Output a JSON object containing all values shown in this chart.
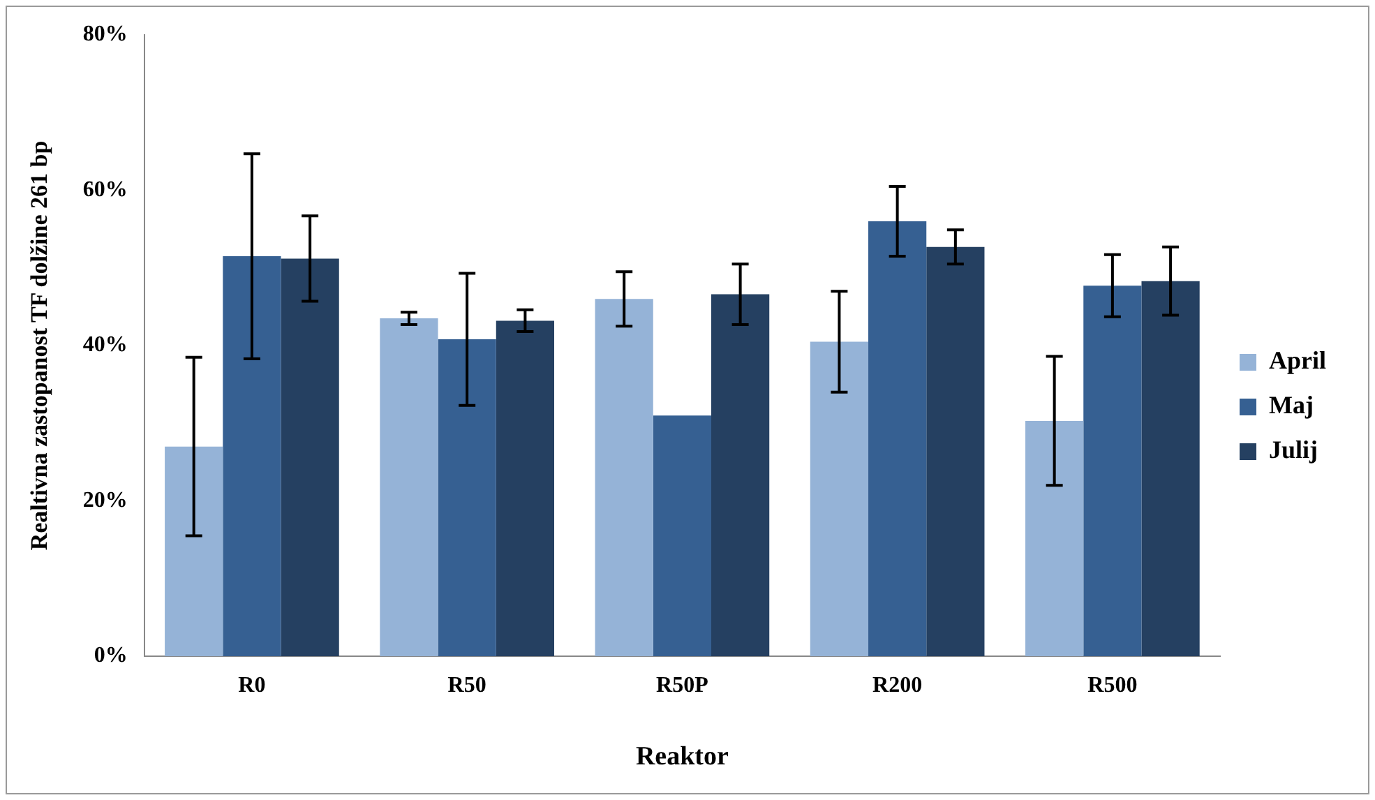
{
  "chart_data": {
    "type": "bar",
    "xlabel": "Reaktor",
    "ylabel": "Realtivna zastopanost TF dolžine 261 bp",
    "categories": [
      "R0",
      "R50",
      "R50P",
      "R200",
      "R500"
    ],
    "series": [
      {
        "name": "April",
        "color": "#95b3d7",
        "values": [
          27,
          43.5,
          46,
          40.5,
          30.3
        ],
        "errors": [
          11.5,
          0.8,
          3.5,
          6.5,
          8.3
        ]
      },
      {
        "name": "Maj",
        "color": "#366092",
        "values": [
          51.5,
          40.8,
          31,
          56,
          47.7
        ],
        "errors": [
          13.2,
          8.5,
          null,
          4.5,
          4
        ]
      },
      {
        "name": "Julij",
        "color": "#254061",
        "values": [
          51.2,
          43.2,
          46.6,
          52.7,
          48.3
        ],
        "errors": [
          5.5,
          1.4,
          3.9,
          2.2,
          4.4
        ]
      }
    ],
    "ylim": [
      0,
      80
    ],
    "yticks": [
      {
        "value": 0,
        "label": "0%"
      },
      {
        "value": 20,
        "label": "20%"
      },
      {
        "value": 40,
        "label": "40%"
      },
      {
        "value": 60,
        "label": "60%"
      },
      {
        "value": 80,
        "label": "80%"
      }
    ],
    "grid": false,
    "legend": "right"
  }
}
